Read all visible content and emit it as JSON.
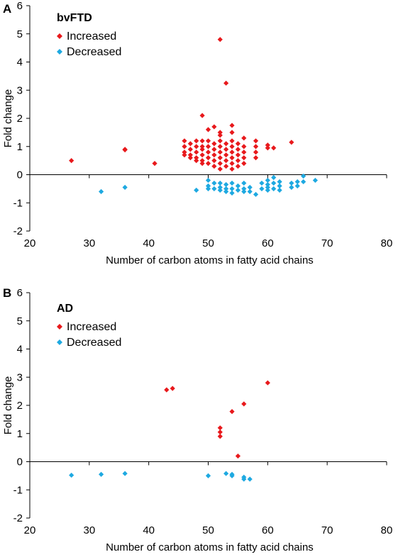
{
  "chart_data": [
    {
      "type": "scatter",
      "panel_label": "A",
      "title": "bvFTD",
      "xlabel": "Number of carbon atoms in fatty acid chains",
      "ylabel": "Fold change",
      "xlim": [
        20,
        80
      ],
      "ylim": [
        -2,
        6
      ],
      "xticks": [
        "20",
        "30",
        "40",
        "50",
        "60",
        "70",
        "80"
      ],
      "yticks": [
        "-2",
        "-1",
        "0",
        "1",
        "2",
        "3",
        "4",
        "5",
        "6"
      ],
      "grid": false,
      "legend_position": "top-left",
      "series": [
        {
          "name": "Increased",
          "color": "#e8191c",
          "points": [
            [
              27,
              0.5
            ],
            [
              36,
              0.9
            ],
            [
              36,
              0.88
            ],
            [
              41,
              0.4
            ],
            [
              46,
              1.2
            ],
            [
              46,
              1.0
            ],
            [
              46,
              0.8
            ],
            [
              46,
              0.7
            ],
            [
              47,
              1.1
            ],
            [
              47,
              0.9
            ],
            [
              47,
              0.7
            ],
            [
              47,
              0.6
            ],
            [
              48,
              1.2
            ],
            [
              48,
              1.0
            ],
            [
              48,
              0.8
            ],
            [
              48,
              0.6
            ],
            [
              48,
              0.5
            ],
            [
              49,
              2.1
            ],
            [
              49,
              1.2
            ],
            [
              49,
              1.0
            ],
            [
              49,
              0.9
            ],
            [
              49,
              0.7
            ],
            [
              49,
              0.5
            ],
            [
              49,
              0.4
            ],
            [
              50,
              1.6
            ],
            [
              50,
              1.2
            ],
            [
              50,
              1.0
            ],
            [
              50,
              0.8
            ],
            [
              50,
              0.6
            ],
            [
              50,
              0.4
            ],
            [
              51,
              1.7
            ],
            [
              51,
              1.1
            ],
            [
              51,
              0.9
            ],
            [
              51,
              0.7
            ],
            [
              51,
              0.5
            ],
            [
              51,
              0.3
            ],
            [
              52,
              4.8
            ],
            [
              52,
              1.5
            ],
            [
              52,
              1.4
            ],
            [
              52,
              1.2
            ],
            [
              52,
              1.0
            ],
            [
              52,
              0.8
            ],
            [
              52,
              0.6
            ],
            [
              52,
              0.4
            ],
            [
              52,
              0.2
            ],
            [
              53,
              3.25
            ],
            [
              53,
              1.1
            ],
            [
              53,
              0.9
            ],
            [
              53,
              0.7
            ],
            [
              53,
              0.5
            ],
            [
              53,
              0.3
            ],
            [
              54,
              1.75
            ],
            [
              54,
              1.5
            ],
            [
              54,
              1.2
            ],
            [
              54,
              1.0
            ],
            [
              54,
              0.8
            ],
            [
              54,
              0.6
            ],
            [
              54,
              0.4
            ],
            [
              54,
              0.2
            ],
            [
              55,
              1.1
            ],
            [
              55,
              0.9
            ],
            [
              55,
              0.7
            ],
            [
              55,
              0.5
            ],
            [
              55,
              0.3
            ],
            [
              56,
              1.3
            ],
            [
              56,
              1.0
            ],
            [
              56,
              0.8
            ],
            [
              56,
              0.6
            ],
            [
              56,
              0.4
            ],
            [
              58,
              1.2
            ],
            [
              58,
              1.0
            ],
            [
              58,
              0.8
            ],
            [
              58,
              0.6
            ],
            [
              60,
              1.05
            ],
            [
              60,
              0.95
            ],
            [
              61,
              0.95
            ],
            [
              64,
              1.15
            ]
          ]
        },
        {
          "name": "Decreased",
          "color": "#1ea9e1",
          "points": [
            [
              32,
              -0.6
            ],
            [
              36,
              -0.45
            ],
            [
              48,
              -0.55
            ],
            [
              50,
              -0.2
            ],
            [
              50,
              -0.4
            ],
            [
              50,
              -0.5
            ],
            [
              51,
              -0.3
            ],
            [
              51,
              -0.5
            ],
            [
              52,
              -0.3
            ],
            [
              52,
              -0.45
            ],
            [
              52,
              -0.55
            ],
            [
              53,
              -0.35
            ],
            [
              53,
              -0.5
            ],
            [
              53,
              -0.6
            ],
            [
              54,
              -0.3
            ],
            [
              54,
              -0.5
            ],
            [
              54,
              -0.65
            ],
            [
              55,
              -0.4
            ],
            [
              55,
              -0.55
            ],
            [
              56,
              -0.3
            ],
            [
              56,
              -0.5
            ],
            [
              56,
              -0.6
            ],
            [
              57,
              -0.45
            ],
            [
              57,
              -0.6
            ],
            [
              58,
              -0.7
            ],
            [
              59,
              -0.3
            ],
            [
              59,
              -0.5
            ],
            [
              60,
              -0.2
            ],
            [
              60,
              -0.35
            ],
            [
              60,
              -0.45
            ],
            [
              60,
              -0.55
            ],
            [
              61,
              -0.1
            ],
            [
              61,
              -0.3
            ],
            [
              61,
              -0.5
            ],
            [
              62,
              -0.25
            ],
            [
              62,
              -0.4
            ],
            [
              62,
              -0.55
            ],
            [
              64,
              -0.3
            ],
            [
              64,
              -0.45
            ],
            [
              65,
              -0.25
            ],
            [
              65,
              -0.4
            ],
            [
              66,
              -0.05
            ],
            [
              66,
              -0.25
            ],
            [
              68,
              -0.2
            ]
          ]
        }
      ]
    },
    {
      "type": "scatter",
      "panel_label": "B",
      "title": "AD",
      "xlabel": "Number of carbon atoms in fatty acid chains",
      "ylabel": "Fold change",
      "xlim": [
        20,
        80
      ],
      "ylim": [
        -2,
        6
      ],
      "xticks": [
        "20",
        "30",
        "40",
        "50",
        "60",
        "70",
        "80"
      ],
      "yticks": [
        "-2",
        "-1",
        "0",
        "1",
        "2",
        "3",
        "4",
        "5",
        "6"
      ],
      "grid": false,
      "legend_position": "top-left",
      "series": [
        {
          "name": "Increased",
          "color": "#e8191c",
          "points": [
            [
              43,
              2.55
            ],
            [
              44,
              2.6
            ],
            [
              52,
              1.2
            ],
            [
              52,
              1.05
            ],
            [
              52,
              0.9
            ],
            [
              54,
              1.78
            ],
            [
              55,
              0.2
            ],
            [
              56,
              2.05
            ],
            [
              60,
              2.8
            ]
          ]
        },
        {
          "name": "Decreased",
          "color": "#1ea9e1",
          "points": [
            [
              27,
              -0.48
            ],
            [
              32,
              -0.45
            ],
            [
              36,
              -0.42
            ],
            [
              50,
              -0.5
            ],
            [
              53,
              -0.42
            ],
            [
              54,
              -0.45
            ],
            [
              54,
              -0.5
            ],
            [
              56,
              -0.55
            ],
            [
              56,
              -0.62
            ],
            [
              57,
              -0.62
            ]
          ]
        }
      ]
    }
  ]
}
